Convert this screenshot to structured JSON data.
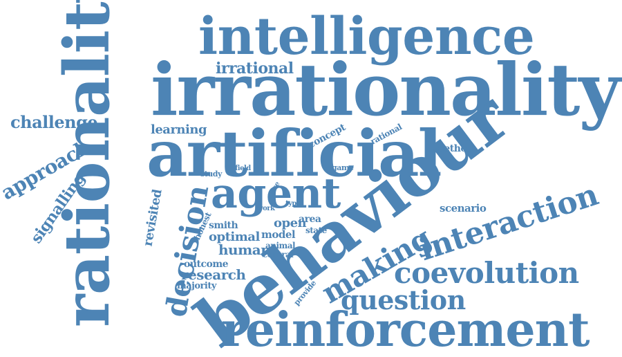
{
  "word_cloud": {
    "color": "#4d84b5",
    "words": [
      {
        "key": "intelligence",
        "text": "intelligence"
      },
      {
        "key": "irrationality",
        "text": "irrationality"
      },
      {
        "key": "irrational",
        "text": "irrational"
      },
      {
        "key": "rationality",
        "text": "rationality"
      },
      {
        "key": "artificial",
        "text": "artificial"
      },
      {
        "key": "behaviour",
        "text": "behaviour"
      },
      {
        "key": "reinforcement",
        "text": "reinforcement"
      },
      {
        "key": "agent",
        "text": "agent"
      },
      {
        "key": "interaction",
        "text": "interaction"
      },
      {
        "key": "coevolution",
        "text": "coevolution"
      },
      {
        "key": "question",
        "text": "question"
      },
      {
        "key": "making",
        "text": "making"
      },
      {
        "key": "decision",
        "text": "decision"
      },
      {
        "key": "challenge",
        "text": "challenge"
      },
      {
        "key": "approach",
        "text": "approach"
      },
      {
        "key": "signalling",
        "text": "signalling"
      },
      {
        "key": "learning",
        "text": "learning"
      },
      {
        "key": "concept",
        "text": "concept"
      },
      {
        "key": "rational",
        "text": "rational"
      },
      {
        "key": "method",
        "text": "method"
      },
      {
        "key": "game",
        "text": "game"
      },
      {
        "key": "study",
        "text": "study"
      },
      {
        "key": "field",
        "text": "field"
      },
      {
        "key": "case",
        "text": "case"
      },
      {
        "key": "revisited",
        "text": "revisited"
      },
      {
        "key": "honest",
        "text": "honest"
      },
      {
        "key": "work",
        "text": "work"
      },
      {
        "key": "type",
        "text": "type"
      },
      {
        "key": "area",
        "text": "area"
      },
      {
        "key": "open",
        "text": "open"
      },
      {
        "key": "state",
        "text": "state"
      },
      {
        "key": "smith",
        "text": "smith"
      },
      {
        "key": "optimal",
        "text": "optimal"
      },
      {
        "key": "model",
        "text": "model"
      },
      {
        "key": "animal",
        "text": "animal"
      },
      {
        "key": "central",
        "text": "central"
      },
      {
        "key": "human",
        "text": "human"
      },
      {
        "key": "outcome",
        "text": "outcome"
      },
      {
        "key": "research",
        "text": "research"
      },
      {
        "key": "majority",
        "text": "majority"
      },
      {
        "key": "provide",
        "text": "provide"
      },
      {
        "key": "scenario",
        "text": "scenario"
      }
    ]
  }
}
